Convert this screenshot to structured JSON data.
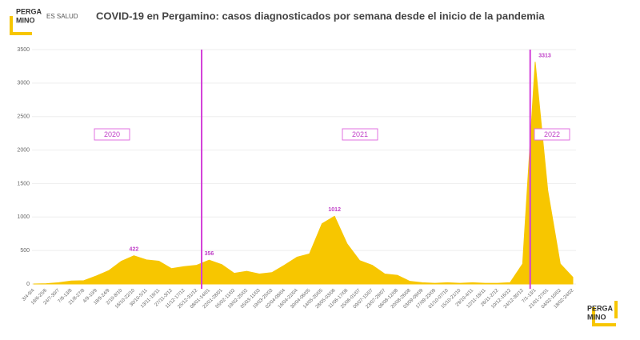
{
  "header": {
    "logo_top": "PERGA",
    "logo_bottom": "MINO",
    "tagline": "ES SALUD"
  },
  "footer": {
    "logo_top": "PERGA",
    "logo_bottom": "MINO"
  },
  "chart_data": {
    "type": "area",
    "title": "COVID-19 en Pergamino: casos diagnosticados por semana desde el inicio de la pandemia",
    "categories": [
      "3/4-9/4",
      "19/6-25/6",
      "24/7-30/7",
      "7/8-13/8",
      "21/8-27/8",
      "4/9-10/9",
      "18/9-24/9",
      "2/10-8/10",
      "16/10-22/10",
      "30/10-5/11",
      "13/11-19/11",
      "27/11-3/12",
      "11/12-17/12",
      "25/12-31/12",
      "08/01-14/01",
      "22/01-28/01",
      "05/02-11/02",
      "19/02-25/02",
      "05/03-11/03",
      "19/03-25/03",
      "02/04-08/04",
      "16/04-22/04",
      "30/04-06/05",
      "14/05-20/05",
      "28/05-03/06",
      "11/06-17/06",
      "25/06-01/07",
      "09/07-15/07",
      "23/07-29/07",
      "06/08-12/08",
      "20/08-26/08",
      "03/09-09/09",
      "17/09-23/09",
      "01/10-07/10",
      "15/10-21/10",
      "29/10-4/11",
      "12/11-18/11",
      "26/11-2/12",
      "10/12-16/12",
      "24/12-30/12",
      "7/1-13/1",
      "21/01-27/01",
      "04/02-10/02",
      "18/02-24/02"
    ],
    "values": [
      0,
      5,
      20,
      45,
      50,
      120,
      200,
      340,
      422,
      360,
      340,
      230,
      260,
      280,
      356,
      290,
      160,
      190,
      150,
      170,
      280,
      400,
      450,
      900,
      1012,
      600,
      350,
      280,
      150,
      130,
      40,
      20,
      10,
      20,
      10,
      20,
      10,
      10,
      20,
      300,
      3313,
      1400,
      300,
      100
    ],
    "color": "#f7c600",
    "ylim": [
      0,
      3500
    ],
    "yticks": [
      0,
      500,
      1000,
      1500,
      2000,
      2500,
      3000,
      3500
    ],
    "grid": true,
    "periods": [
      "2020",
      "2021",
      "2022"
    ]
  }
}
